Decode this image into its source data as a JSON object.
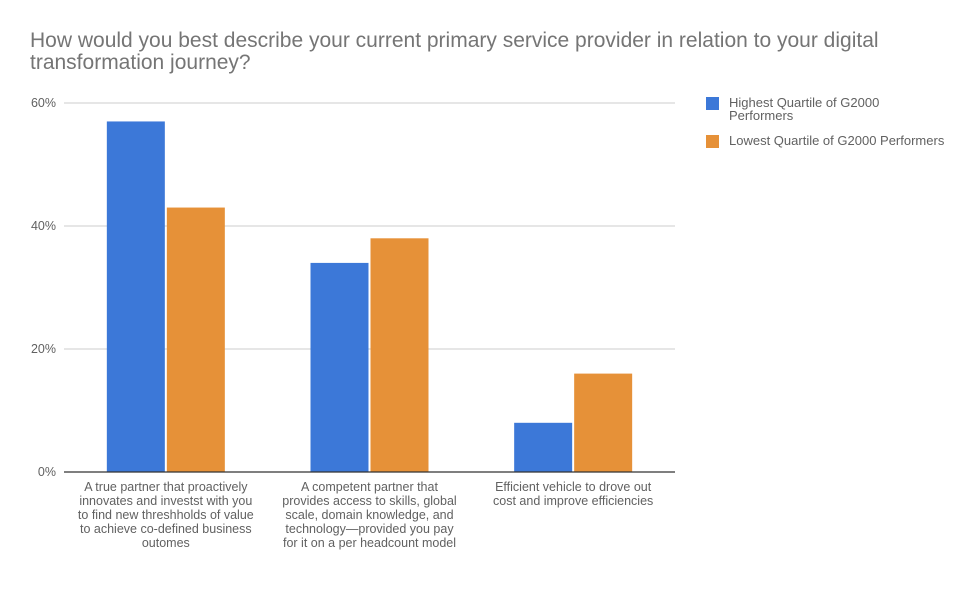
{
  "title": "How would you best describe your current primary service provider in relation to your digital transformation journey?",
  "legend": [
    {
      "label": "Highest Quartile of G2000 Performers",
      "color": "#3c78d8"
    },
    {
      "label": "Lowest Quartile of G2000 Performers",
      "color": "#e69138"
    }
  ],
  "chart_data": {
    "type": "bar",
    "title": "How would you best describe your current primary service provider in relation to your digital transformation journey?",
    "categories": [
      "A true partner that proactively innovates and investst with you to find new threshholds of value to achieve co-defined business outomes",
      "A competent partner that provides access to skills, global scale, domain knowledge, and technology—provided you pay for it on a per headcount model",
      "Efficient vehicle to drove out cost and improve efficiencies"
    ],
    "series": [
      {
        "name": "Highest Quartile of G2000 Performers",
        "values": [
          57,
          34,
          8
        ],
        "color": "#3c78d8"
      },
      {
        "name": "Lowest Quartile of G2000 Performers",
        "values": [
          43,
          38,
          16
        ],
        "color": "#e69138"
      }
    ],
    "ylim": [
      0,
      60
    ],
    "yticks": [
      0,
      20,
      40,
      60
    ],
    "ytick_labels": [
      "0%",
      "20%",
      "40%",
      "60%"
    ],
    "grid": true,
    "legend_position": "right"
  }
}
